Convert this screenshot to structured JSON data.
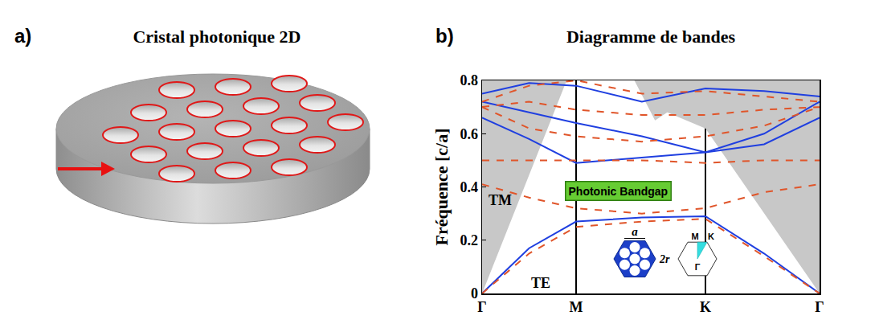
{
  "panel_a": {
    "letter": "a)",
    "title": "Cristal photonique 2D"
  },
  "chart_data": {
    "type": "line",
    "letter": "b)",
    "title": "Diagramme de bandes",
    "y_label": "Fréquence [c/a]",
    "x": [
      0,
      0.5,
      1,
      1.7,
      2.376,
      3.0,
      3.59
    ],
    "xlim": [
      0,
      3.59
    ],
    "xticks": [
      {
        "value": 0,
        "label": "Γ"
      },
      {
        "value": 1,
        "label": "M"
      },
      {
        "value": 2.376,
        "label": "K"
      },
      {
        "value": 3.59,
        "label": "Γ"
      }
    ],
    "ylim": [
      0,
      0.8
    ],
    "yticks": [
      0,
      0.2,
      0.4,
      0.6,
      0.8
    ],
    "grid": true,
    "series": [
      {
        "type": "area",
        "color": "#c8c8c8",
        "x": [
          0,
          0.9,
          0,
          null,
          1.62,
          1.84,
          1.97,
          2.376,
          3.59,
          3.59
        ],
        "values": [
          0,
          0.8,
          0.8,
          null,
          0.8,
          0.65,
          0.68,
          0.62,
          0,
          0.8
        ]
      },
      {
        "name": "TE",
        "color": "#1f3fe0",
        "line_style": "solid",
        "values": [
          0,
          0.17,
          0.27,
          0.285,
          0.29,
          0.15,
          0
        ]
      },
      {
        "name": "TE",
        "color": "#1f3fe0",
        "line_style": "solid",
        "values": [
          0.66,
          0.58,
          0.49,
          0.51,
          0.53,
          0.56,
          0.66
        ]
      },
      {
        "name": "TE",
        "color": "#1f3fe0",
        "line_style": "solid",
        "values": [
          0.72,
          0.68,
          0.64,
          0.59,
          0.53,
          0.6,
          0.72
        ]
      },
      {
        "name": "TE",
        "color": "#1f3fe0",
        "line_style": "solid",
        "values": [
          0.75,
          0.79,
          0.78,
          0.72,
          0.77,
          0.76,
          0.74
        ]
      },
      {
        "name": "TM",
        "color": "#e0552a",
        "line_style": "dash",
        "values": [
          0,
          0.15,
          0.25,
          0.27,
          0.28,
          0.14,
          0
        ]
      },
      {
        "name": "TM",
        "color": "#e0552a",
        "line_style": "dash",
        "values": [
          0.41,
          0.36,
          0.32,
          0.3,
          0.32,
          0.38,
          0.41
        ]
      },
      {
        "name": "TM",
        "color": "#e0552a",
        "line_style": "dash",
        "values": [
          0.5,
          0.5,
          0.5,
          0.5,
          0.49,
          0.5,
          0.5
        ]
      },
      {
        "name": "TM",
        "color": "#e0552a",
        "line_style": "dash",
        "values": [
          0.7,
          0.62,
          0.59,
          0.57,
          0.59,
          0.63,
          0.7
        ]
      },
      {
        "name": "TM",
        "color": "#e0552a",
        "line_style": "dash",
        "values": [
          0.7,
          0.72,
          0.69,
          0.67,
          0.67,
          0.69,
          0.7
        ]
      },
      {
        "name": "TM",
        "color": "#e0552a",
        "line_style": "dash",
        "values": [
          0.72,
          0.78,
          0.8,
          0.75,
          0.76,
          0.74,
          0.72
        ]
      }
    ],
    "annotations": [
      {
        "text": "TM",
        "x": 0.05,
        "y": 0.35
      },
      {
        "text": "TE",
        "x": 0.5,
        "y": 0.04
      }
    ],
    "band_gap": {
      "text": "Photonic Bandgap",
      "x": 1.45,
      "y": 0.385,
      "color": "#66cc33"
    },
    "inset": {
      "lattice_labels": [
        "a",
        "2r"
      ],
      "zone_labels": [
        "M",
        "K",
        "Γ"
      ]
    }
  }
}
